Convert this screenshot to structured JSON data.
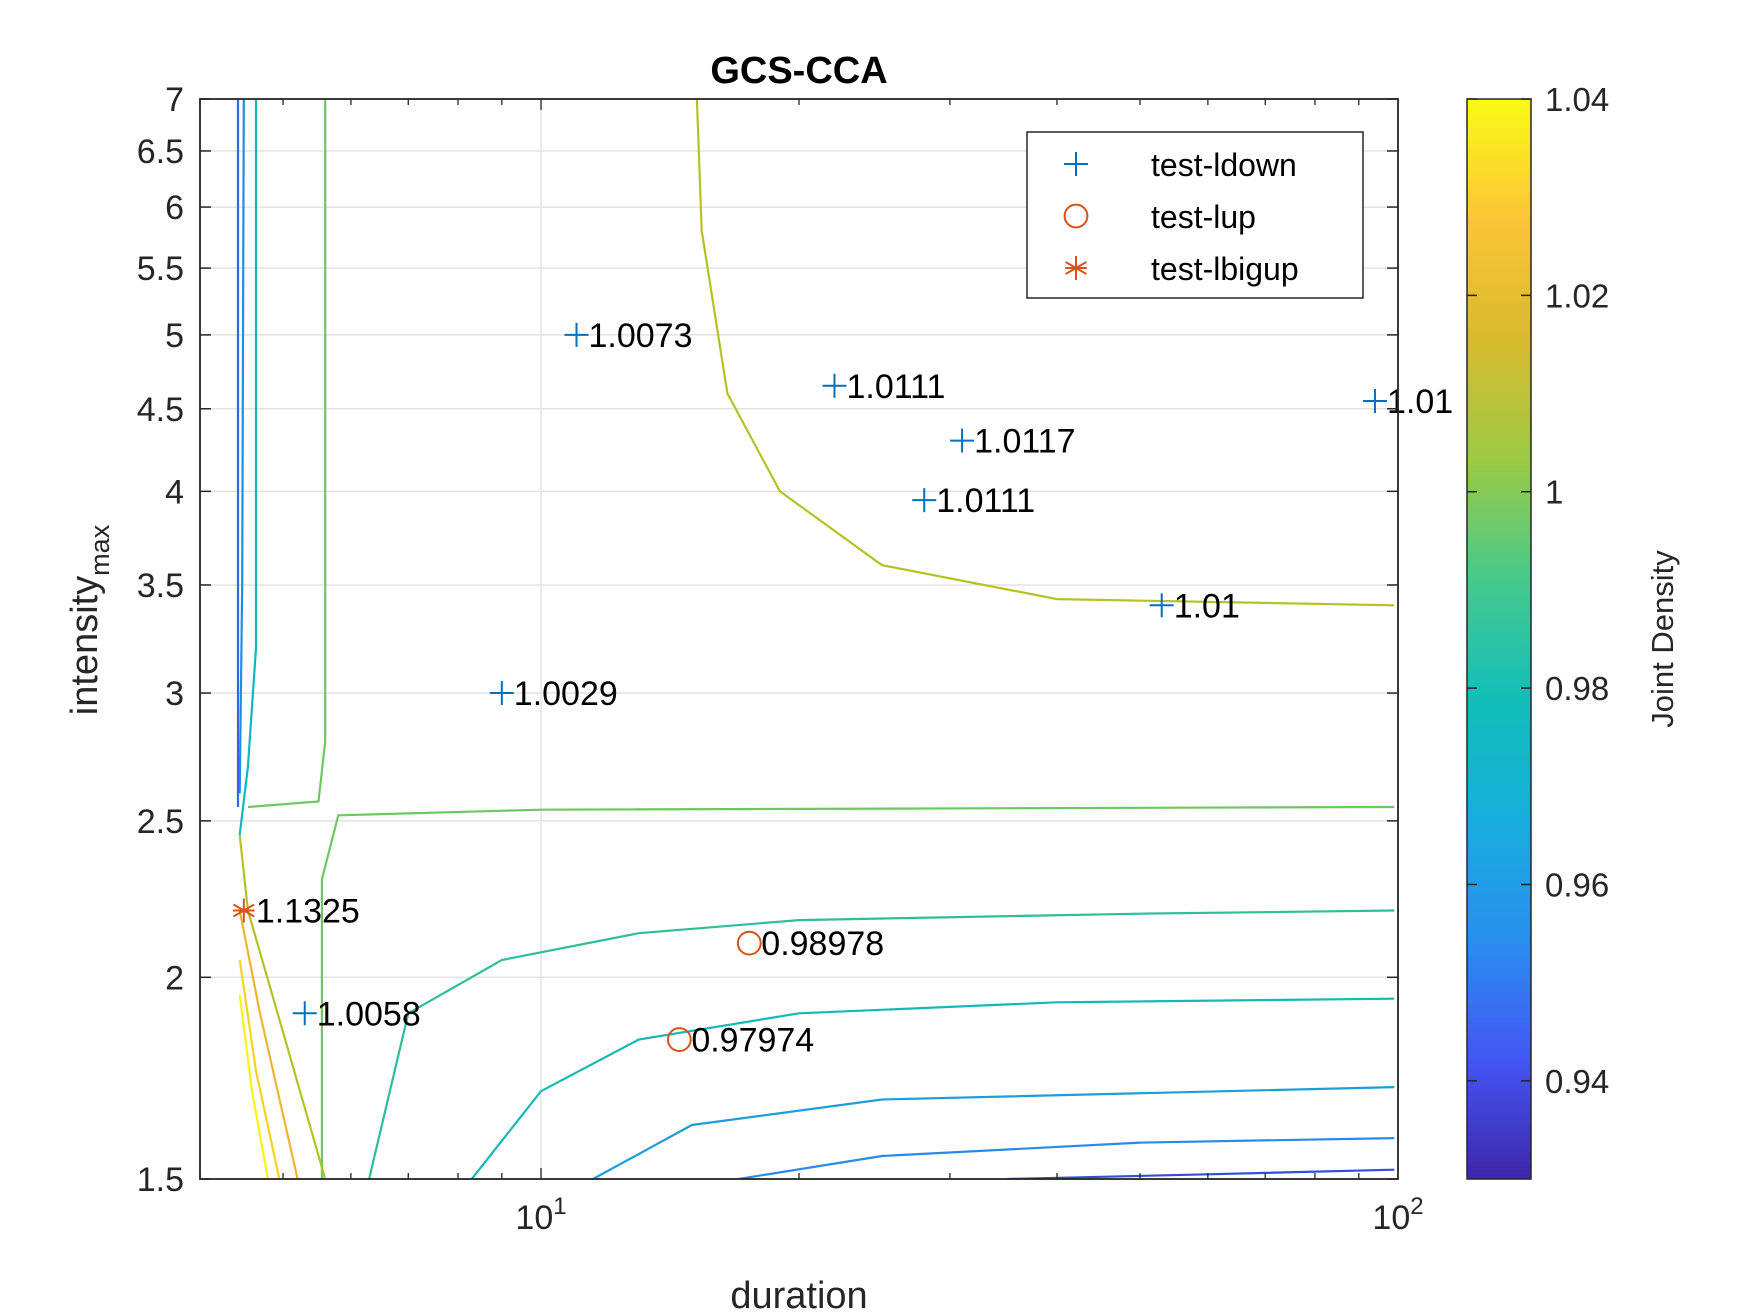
{
  "chart_data": {
    "type": "scatter",
    "title": "GCS-CCA",
    "xlabel": "duration",
    "ylabel_main": "intensity",
    "ylabel_sub": "max",
    "x_scale": "log",
    "y_scale": "log",
    "xlim": [
      4,
      100
    ],
    "ylim": [
      1.5,
      7
    ],
    "x_ticks": [
      {
        "value": 10,
        "base": "10",
        "exp": "1"
      },
      {
        "value": 100,
        "base": "10",
        "exp": "2"
      }
    ],
    "y_ticks": [
      {
        "value": 1.5,
        "label": "1.5"
      },
      {
        "value": 2,
        "label": "2"
      },
      {
        "value": 2.5,
        "label": "2.5"
      },
      {
        "value": 3,
        "label": "3"
      },
      {
        "value": 3.5,
        "label": "3.5"
      },
      {
        "value": 4,
        "label": "4"
      },
      {
        "value": 4.5,
        "label": "4.5"
      },
      {
        "value": 5,
        "label": "5"
      },
      {
        "value": 5.5,
        "label": "5.5"
      },
      {
        "value": 6,
        "label": "6"
      },
      {
        "value": 6.5,
        "label": "6.5"
      },
      {
        "value": 7,
        "label": "7"
      }
    ],
    "grid": true,
    "legend_position": "top-right",
    "legend": [
      {
        "name": "test-ldown",
        "marker": "plus",
        "color": "#0072BD"
      },
      {
        "name": "test-lup",
        "marker": "circle",
        "color": "#D95319"
      },
      {
        "name": "test-lbigup",
        "marker": "asterisk",
        "color": "#D95319"
      }
    ],
    "series": [
      {
        "name": "test-ldown",
        "marker": "plus",
        "color": "#0072BD",
        "points": [
          {
            "x": 11,
            "y": 5.0,
            "label": "1.0073"
          },
          {
            "x": 22,
            "y": 4.65,
            "label": "1.0111"
          },
          {
            "x": 31,
            "y": 4.3,
            "label": "1.0117"
          },
          {
            "x": 28,
            "y": 3.95,
            "label": "1.0111"
          },
          {
            "x": 53,
            "y": 3.4,
            "label": "1.01"
          },
          {
            "x": 94,
            "y": 4.55,
            "label": "1.01"
          },
          {
            "x": 9,
            "y": 3.0,
            "label": "1.0029"
          },
          {
            "x": 5.3,
            "y": 1.9,
            "label": "1.0058"
          }
        ]
      },
      {
        "name": "test-lup",
        "marker": "circle",
        "color": "#D95319",
        "points": [
          {
            "x": 17.5,
            "y": 2.1,
            "label": "0.98978"
          },
          {
            "x": 14.5,
            "y": 1.83,
            "label": "0.97974"
          }
        ]
      },
      {
        "name": "test-lbigup",
        "marker": "asterisk",
        "color": "#D95319",
        "points": [
          {
            "x": 4.5,
            "y": 2.2,
            "label": "1.1325"
          }
        ]
      }
    ],
    "contour_lines": [
      {
        "level": 1.01,
        "color": "#b5c226",
        "points": [
          [
            15.2,
            7.0
          ],
          [
            15.4,
            5.8
          ],
          [
            16.5,
            4.6
          ],
          [
            19,
            4.0
          ],
          [
            25,
            3.6
          ],
          [
            40,
            3.43
          ],
          [
            99,
            3.4
          ]
        ]
      },
      {
        "level": 1.0,
        "color": "#6cc960",
        "points": [
          [
            5.6,
            7.0
          ],
          [
            5.6,
            2.8
          ],
          [
            5.5,
            2.57
          ],
          [
            4.55,
            2.55
          ]
        ]
      },
      {
        "level": 1.0,
        "color": "#6cc960",
        "points": [
          [
            5.55,
            1.5
          ],
          [
            5.55,
            2.3
          ],
          [
            5.8,
            2.52
          ],
          [
            10,
            2.54
          ],
          [
            99,
            2.55
          ]
        ]
      },
      {
        "level": 0.99,
        "color": "#2fbd9a",
        "points": [
          [
            6.3,
            1.5
          ],
          [
            7,
            1.9
          ],
          [
            9,
            2.05
          ],
          [
            13,
            2.13
          ],
          [
            20,
            2.17
          ],
          [
            50,
            2.19
          ],
          [
            99,
            2.2
          ]
        ]
      },
      {
        "level": 0.985,
        "color": "#14b9b7",
        "points": [
          [
            8.3,
            1.5
          ],
          [
            10,
            1.7
          ],
          [
            13,
            1.83
          ],
          [
            20,
            1.9
          ],
          [
            40,
            1.93
          ],
          [
            99,
            1.94
          ]
        ]
      },
      {
        "level": 0.98,
        "color": "#1a9fd8",
        "points": [
          [
            11.5,
            1.5
          ],
          [
            15,
            1.62
          ],
          [
            25,
            1.68
          ],
          [
            99,
            1.71
          ]
        ]
      },
      {
        "level": 0.97,
        "color": "#2a8ae8",
        "points": [
          [
            17,
            1.5
          ],
          [
            25,
            1.55
          ],
          [
            50,
            1.58
          ],
          [
            99,
            1.59
          ]
        ]
      },
      {
        "level": 0.96,
        "color": "#3050d8",
        "points": [
          [
            35,
            1.5
          ],
          [
            60,
            1.51
          ],
          [
            99,
            1.52
          ]
        ]
      },
      {
        "level": 0.98,
        "color": "#12b7c0",
        "points": [
          [
            4.65,
            7.0
          ],
          [
            4.65,
            3.2
          ],
          [
            4.55,
            2.7
          ],
          [
            4.45,
            2.45
          ]
        ]
      },
      {
        "level": 0.97,
        "color": "#1d8fe0",
        "points": [
          [
            4.5,
            7.0
          ],
          [
            4.48,
            3.5
          ],
          [
            4.45,
            2.6
          ]
        ]
      },
      {
        "level": 0.95,
        "color": "#2f67e4",
        "points": [
          [
            4.43,
            7.0
          ],
          [
            4.43,
            2.55
          ]
        ]
      },
      {
        "level": 1.01,
        "color": "#b5c226",
        "points": [
          [
            4.45,
            2.45
          ],
          [
            4.55,
            2.2
          ],
          [
            5.0,
            1.85
          ],
          [
            5.6,
            1.5
          ]
        ]
      },
      {
        "level": 1.02,
        "color": "#f0b434",
        "points": [
          [
            4.45,
            2.2
          ],
          [
            4.7,
            1.9
          ],
          [
            5.2,
            1.5
          ]
        ]
      },
      {
        "level": 1.03,
        "color": "#fad21f",
        "points": [
          [
            4.45,
            2.05
          ],
          [
            4.65,
            1.75
          ],
          [
            4.95,
            1.5
          ]
        ]
      },
      {
        "level": 1.04,
        "color": "#f9f515",
        "points": [
          [
            4.45,
            1.95
          ],
          [
            4.6,
            1.7
          ],
          [
            4.8,
            1.5
          ]
        ]
      }
    ]
  },
  "colorbar": {
    "label": "Joint Density",
    "min": 0.93,
    "max": 1.04,
    "ticks": [
      {
        "value": 0.94,
        "label": "0.94"
      },
      {
        "value": 0.96,
        "label": "0.96"
      },
      {
        "value": 0.98,
        "label": "0.98"
      },
      {
        "value": 1.0,
        "label": "1"
      },
      {
        "value": 1.02,
        "label": "1.02"
      },
      {
        "value": 1.04,
        "label": "1.04"
      }
    ],
    "colors": [
      "#3e26a8",
      "#4456f5",
      "#2a8fef",
      "#16aedb",
      "#12bfb8",
      "#48c98c",
      "#9dca44",
      "#d9ba2e",
      "#fcc538",
      "#f9fb14"
    ]
  }
}
